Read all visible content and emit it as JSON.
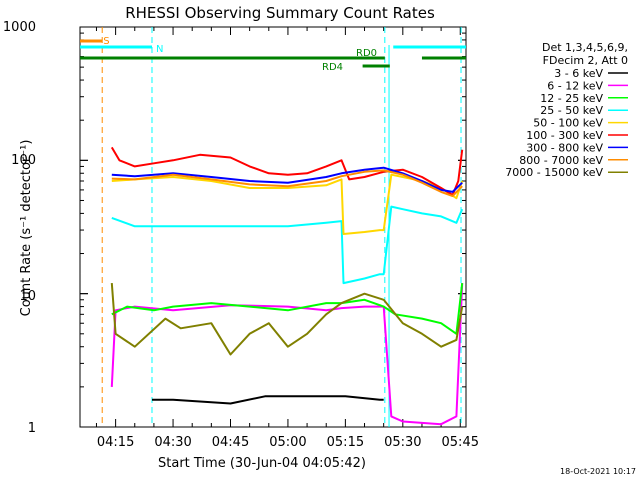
{
  "chart_data": {
    "type": "line",
    "title": "RHESSI Observing Summary Count Rates",
    "xlabel": "Start Time (30-Jun-04 04:05:42)",
    "ylabel": "Count Rate (s⁻¹ detector⁻¹)",
    "y_scale": "log",
    "ylim": [
      1,
      1000
    ],
    "y_ticks": [
      "1",
      "10",
      "100",
      "1000"
    ],
    "x_ticks": [
      "04:15",
      "04:30",
      "04:45",
      "05:00",
      "05:15",
      "05:30",
      "05:45"
    ],
    "x_tick_minutes": [
      15,
      30,
      45,
      60,
      75,
      90,
      105
    ],
    "x_range_minutes": [
      5.7,
      106.5
    ],
    "footer": "18-Oct-2021 10:17",
    "legend_header": [
      "Det 1,3,4,5,6,9,",
      "FDecim 2, Att 0"
    ],
    "series": [
      {
        "name": "3 - 6 keV",
        "color": "#000000",
        "minutes": [
          24.5,
          30,
          45,
          54,
          60,
          64,
          75,
          84,
          85
        ],
        "values": [
          1.6,
          1.6,
          1.5,
          1.7,
          1.7,
          1.7,
          1.7,
          1.6,
          1.6
        ]
      },
      {
        "name": "6 - 12 keV",
        "color": "#ff00ff",
        "minutes": [
          14,
          15,
          20,
          30,
          45,
          60,
          70,
          74,
          80,
          85,
          87,
          90,
          100,
          104,
          105.5
        ],
        "values": [
          2,
          7.5,
          8,
          7.5,
          8.2,
          8,
          7.5,
          7.8,
          8,
          8,
          1.2,
          1.1,
          1.05,
          1.2,
          12
        ]
      },
      {
        "name": "12 - 25 keV",
        "color": "#00ff00",
        "minutes": [
          14,
          18,
          25,
          30,
          40,
          50,
          60,
          70,
          74,
          80,
          85,
          88,
          95,
          100,
          104,
          105.5
        ],
        "values": [
          7,
          8,
          7.5,
          8,
          8.5,
          8,
          7.5,
          8.5,
          8.5,
          9,
          8,
          7,
          6.5,
          6,
          5,
          12
        ]
      },
      {
        "name": "25 - 50 keV",
        "color": "#00ffff",
        "minutes": [
          14,
          20,
          30,
          40,
          50,
          60,
          70,
          74,
          74.5,
          80,
          84,
          85,
          87,
          90,
          95,
          100,
          104,
          105.5
        ],
        "values": [
          37,
          32,
          32,
          32,
          32,
          32,
          34,
          35,
          12,
          13,
          14,
          14,
          45,
          43,
          40,
          38,
          34,
          43
        ]
      },
      {
        "name": "50 - 100 keV",
        "color": "#ffd700",
        "minutes": [
          14,
          20,
          30,
          40,
          50,
          60,
          70,
          74,
          74.5,
          80,
          84,
          85,
          87,
          90,
          95,
          100,
          104,
          105.5
        ],
        "values": [
          70,
          72,
          75,
          70,
          62,
          62,
          65,
          72,
          28,
          29,
          30,
          30,
          78,
          75,
          70,
          62,
          52,
          70
        ]
      },
      {
        "name": "100 - 300 keV",
        "color": "#ff0000",
        "minutes": [
          14,
          16,
          20,
          25,
          30,
          37,
          45,
          50,
          55,
          60,
          65,
          70,
          74,
          76,
          80,
          85,
          90,
          95,
          100,
          103,
          104.5,
          105.5
        ],
        "values": [
          125,
          100,
          90,
          95,
          100,
          110,
          105,
          90,
          80,
          78,
          80,
          90,
          100,
          72,
          75,
          82,
          85,
          75,
          62,
          55,
          70,
          120
        ]
      },
      {
        "name": "300 - 800 keV",
        "color": "#0000ff",
        "minutes": [
          14,
          20,
          30,
          40,
          50,
          60,
          70,
          74,
          80,
          85,
          90,
          95,
          100,
          103,
          105.5
        ],
        "values": [
          78,
          76,
          80,
          75,
          70,
          68,
          75,
          80,
          85,
          88,
          80,
          70,
          60,
          58,
          68
        ]
      },
      {
        "name": "800 - 7000 keV",
        "color": "#ff8c00",
        "minutes": [
          14,
          20,
          30,
          40,
          50,
          60,
          70,
          74,
          80,
          85,
          90,
          95,
          100,
          103,
          105.5
        ],
        "values": [
          73,
          72,
          78,
          72,
          66,
          64,
          70,
          76,
          82,
          84,
          78,
          68,
          58,
          54,
          64
        ]
      },
      {
        "name": "7000 - 15000 keV",
        "color": "#808000",
        "minutes": [
          14,
          15,
          20,
          28,
          32,
          40,
          45,
          50,
          55,
          60,
          65,
          70,
          74,
          80,
          85,
          90,
          95,
          100,
          104,
          105.5
        ],
        "values": [
          12,
          5,
          4,
          6.5,
          5.5,
          6,
          3.5,
          5,
          6,
          4,
          5,
          7,
          8.5,
          10,
          9,
          6,
          5,
          4,
          4.5,
          8
        ]
      }
    ],
    "flag_bars": [
      {
        "label": "S",
        "color": "#ff8c00",
        "start": 5.7,
        "end": 11.5,
        "level": 0
      },
      {
        "label": "N",
        "color": "#00ffff",
        "start": 5.7,
        "end": 24.5,
        "level": 1
      },
      {
        "label": "",
        "color": "#00ffff",
        "start": 87.5,
        "end": 106.5,
        "level": 1
      },
      {
        "label": "RD0",
        "color": "#008000",
        "start": 5.7,
        "end": 85.3,
        "level": 2
      },
      {
        "label": "",
        "color": "#008000",
        "start": 95,
        "end": 106.5,
        "level": 2
      },
      {
        "label": "RD4",
        "color": "#008000",
        "start": 79.5,
        "end": 86.6,
        "level": 3
      }
    ],
    "vlines": [
      {
        "minute": 11.5,
        "color": "#ff8c00"
      },
      {
        "minute": 24.5,
        "color": "#00ffff"
      },
      {
        "minute": 85.3,
        "color": "#00ffff"
      },
      {
        "minute": 105.2,
        "color": "#00ffff"
      }
    ],
    "solid_vlines": [
      {
        "minute": 86.4,
        "color": "#00ffff"
      }
    ]
  }
}
